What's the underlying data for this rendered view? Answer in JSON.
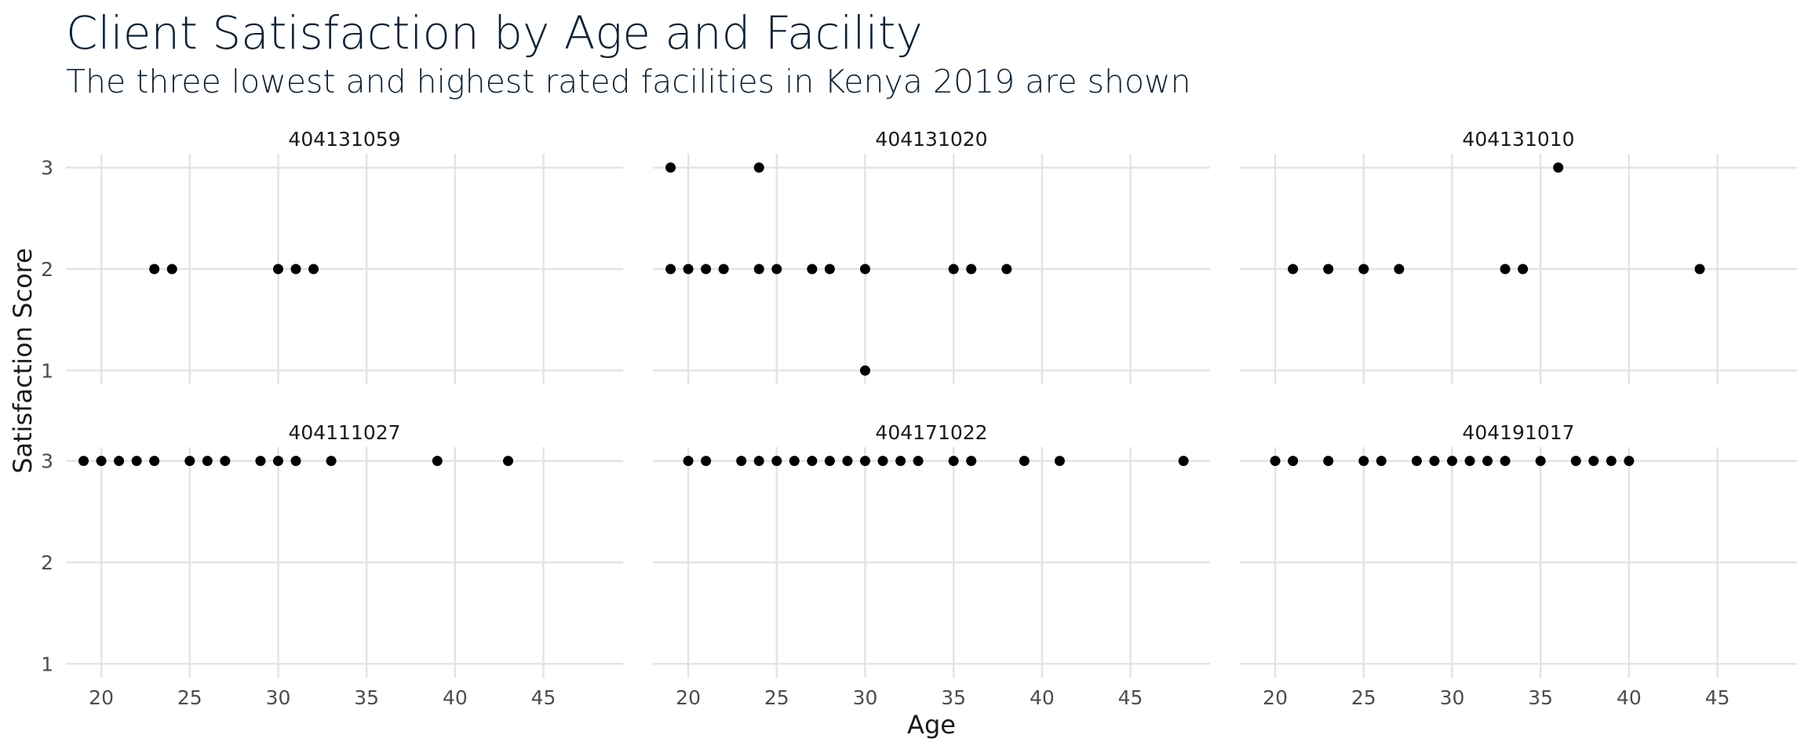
{
  "chart_data": {
    "type": "scatter",
    "title": "Client Satisfaction by Age and Facility",
    "subtitle": "The three lowest and highest rated facilities in Kenya 2019 are shown",
    "xlabel": "Age",
    "ylabel": "Satisfaction Score",
    "xlim": [
      18,
      49.5
    ],
    "ylim": [
      1,
      3
    ],
    "xticks": [
      20,
      25,
      30,
      35,
      40,
      45
    ],
    "yticks": [
      1,
      2,
      3
    ],
    "grid": true,
    "legend": "none",
    "point_color": "#000000",
    "panels": [
      {
        "facility": "404131059",
        "points": [
          [
            23,
            2
          ],
          [
            24,
            2
          ],
          [
            30,
            2
          ],
          [
            31,
            2
          ],
          [
            32,
            2
          ]
        ]
      },
      {
        "facility": "404131020",
        "points": [
          [
            19,
            3
          ],
          [
            24,
            3
          ],
          [
            19,
            2
          ],
          [
            20,
            2
          ],
          [
            21,
            2
          ],
          [
            22,
            2
          ],
          [
            24,
            2
          ],
          [
            25,
            2
          ],
          [
            27,
            2
          ],
          [
            28,
            2
          ],
          [
            30,
            2
          ],
          [
            35,
            2
          ],
          [
            36,
            2
          ],
          [
            38,
            2
          ],
          [
            30,
            1
          ]
        ]
      },
      {
        "facility": "404131010",
        "points": [
          [
            36,
            3
          ],
          [
            21,
            2
          ],
          [
            23,
            2
          ],
          [
            25,
            2
          ],
          [
            27,
            2
          ],
          [
            33,
            2
          ],
          [
            34,
            2
          ],
          [
            44,
            2
          ]
        ]
      },
      {
        "facility": "404111027",
        "points": [
          [
            19,
            3
          ],
          [
            20,
            3
          ],
          [
            21,
            3
          ],
          [
            22,
            3
          ],
          [
            23,
            3
          ],
          [
            25,
            3
          ],
          [
            26,
            3
          ],
          [
            27,
            3
          ],
          [
            29,
            3
          ],
          [
            30,
            3
          ],
          [
            31,
            3
          ],
          [
            33,
            3
          ],
          [
            39,
            3
          ],
          [
            43,
            3
          ]
        ]
      },
      {
        "facility": "404171022",
        "points": [
          [
            20,
            3
          ],
          [
            21,
            3
          ],
          [
            23,
            3
          ],
          [
            24,
            3
          ],
          [
            25,
            3
          ],
          [
            26,
            3
          ],
          [
            27,
            3
          ],
          [
            28,
            3
          ],
          [
            29,
            3
          ],
          [
            30,
            3
          ],
          [
            31,
            3
          ],
          [
            32,
            3
          ],
          [
            33,
            3
          ],
          [
            35,
            3
          ],
          [
            36,
            3
          ],
          [
            39,
            3
          ],
          [
            41,
            3
          ],
          [
            48,
            3
          ]
        ]
      },
      {
        "facility": "404191017",
        "points": [
          [
            20,
            3
          ],
          [
            21,
            3
          ],
          [
            23,
            3
          ],
          [
            25,
            3
          ],
          [
            26,
            3
          ],
          [
            28,
            3
          ],
          [
            29,
            3
          ],
          [
            30,
            3
          ],
          [
            31,
            3
          ],
          [
            32,
            3
          ],
          [
            33,
            3
          ],
          [
            35,
            3
          ],
          [
            37,
            3
          ],
          [
            38,
            3
          ],
          [
            39,
            3
          ],
          [
            40,
            3
          ]
        ]
      }
    ]
  }
}
